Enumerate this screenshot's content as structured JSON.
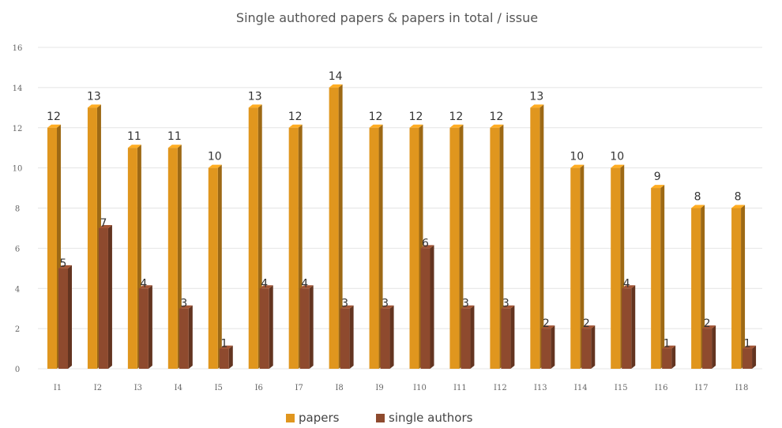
{
  "chart_data": {
    "type": "bar",
    "title": "Single authored papers & papers in total / issue",
    "xlabel": "",
    "ylabel": "",
    "categories": [
      "I1",
      "I2",
      "I3",
      "I4",
      "I5",
      "I6",
      "I7",
      "I8",
      "I9",
      "I10",
      "I11",
      "I12",
      "I13",
      "I14",
      "I15",
      "I16",
      "I17",
      "I18"
    ],
    "series": [
      {
        "name": "papers",
        "color": "#E0961E",
        "values": [
          12,
          13,
          11,
          11,
          10,
          13,
          12,
          14,
          12,
          12,
          12,
          12,
          13,
          10,
          10,
          9,
          8,
          8
        ]
      },
      {
        "name": "single authors",
        "color": "#8E4A2E",
        "values": [
          5,
          7,
          4,
          3,
          1,
          4,
          4,
          3,
          3,
          6,
          3,
          3,
          2,
          2,
          4,
          1,
          2,
          1
        ]
      }
    ],
    "ylim": [
      0,
      16
    ],
    "yticks": [
      0,
      2,
      4,
      6,
      8,
      10,
      12,
      14,
      16
    ],
    "grid": true,
    "legend_position": "bottom-center",
    "style": "3d-columns"
  }
}
